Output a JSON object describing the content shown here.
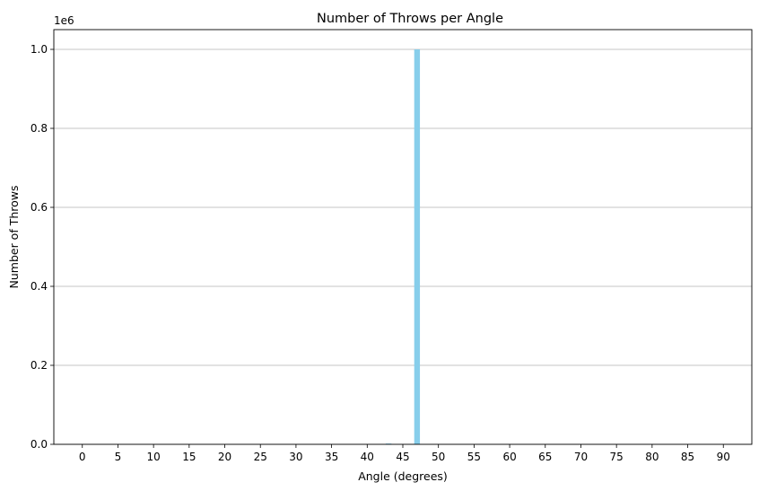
{
  "chart_data": {
    "type": "bar",
    "title": "Number of Throws per Angle",
    "xlabel": "Angle (degrees)",
    "ylabel": "Number of Throws",
    "offset_label": "1e6",
    "scale_multiplier": 1000000,
    "x_ticks": [
      "0",
      "5",
      "10",
      "15",
      "20",
      "25",
      "30",
      "35",
      "40",
      "45",
      "50",
      "55",
      "60",
      "65",
      "70",
      "75",
      "80",
      "85",
      "90"
    ],
    "y_ticks": [
      "0.0",
      "0.2",
      "0.4",
      "0.6",
      "0.8",
      "1.0"
    ],
    "xlim": [
      -4,
      94
    ],
    "ylim": [
      0,
      1.05
    ],
    "grid": "y-major",
    "bar_color": "#87ceeb",
    "bars": [
      {
        "x": 43,
        "value": 0.002
      },
      {
        "x": 47,
        "value": 1.0
      }
    ]
  }
}
